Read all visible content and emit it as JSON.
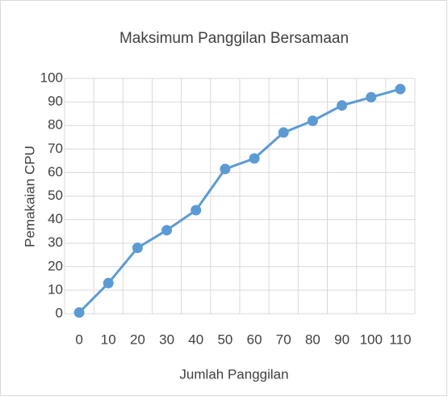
{
  "chart_data": {
    "type": "line",
    "title": "Maksimum Panggilan Bersamaan",
    "xlabel": "Jumlah Panggilan",
    "ylabel": "Pemakaian CPU",
    "categories": [
      "0",
      "10",
      "20",
      "30",
      "40",
      "50",
      "60",
      "70",
      "80",
      "90",
      "100",
      "110"
    ],
    "series": [
      {
        "name": "Pemakaian CPU",
        "color": "#5b9bd5",
        "values": [
          0.5,
          13,
          28,
          35.5,
          44,
          61.5,
          66,
          77,
          82,
          88.5,
          92,
          95.5
        ]
      }
    ],
    "ylim": [
      0,
      100
    ],
    "yticks": [
      0,
      10,
      20,
      30,
      40,
      50,
      60,
      70,
      80,
      90,
      100
    ],
    "grid": true
  }
}
